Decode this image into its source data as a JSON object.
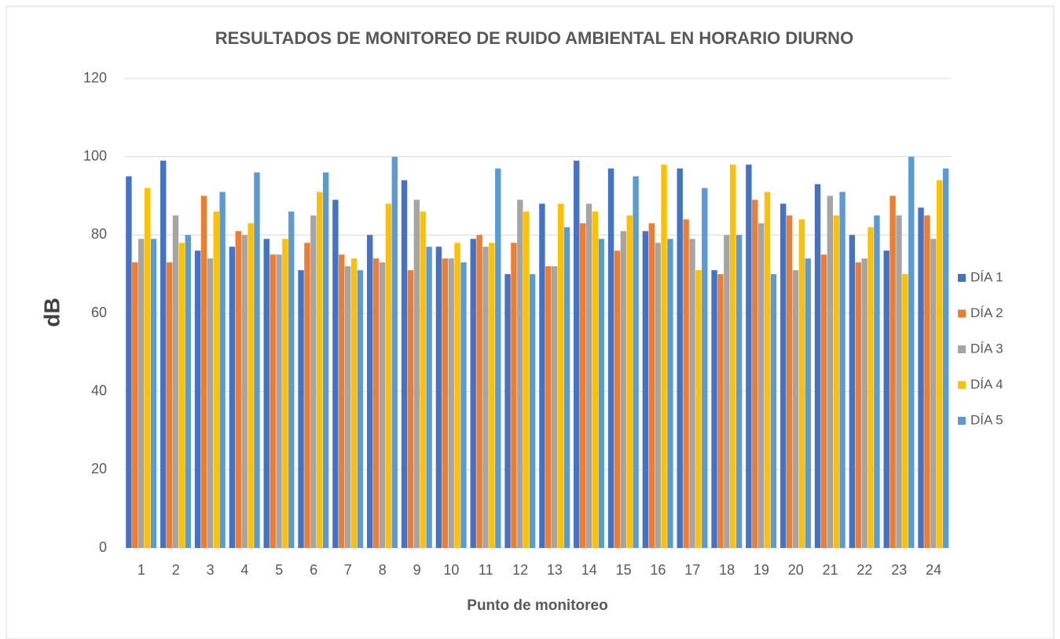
{
  "chart_data": {
    "type": "bar",
    "title": "RESULTADOS DE MONITOREO DE RUIDO AMBIENTAL EN HORARIO DIURNO",
    "y_label": "dB",
    "x_label": "Punto de monitoreo",
    "categories": [
      "1",
      "2",
      "3",
      "4",
      "5",
      "6",
      "7",
      "8",
      "9",
      "10",
      "11",
      "12",
      "13",
      "14",
      "15",
      "16",
      "17",
      "18",
      "19",
      "20",
      "21",
      "22",
      "23",
      "24"
    ],
    "series": [
      {
        "name": "DÍA 1",
        "color": "#4472c4",
        "values": [
          95,
          99,
          76,
          77,
          79,
          71,
          89,
          80,
          94,
          77,
          79,
          70,
          88,
          99,
          97,
          81,
          97,
          71,
          98,
          88,
          93,
          80,
          76,
          87
        ]
      },
      {
        "name": "DÍA 2",
        "color": "#ed7d31",
        "values": [
          73,
          73,
          90,
          81,
          75,
          78,
          75,
          74,
          71,
          74,
          80,
          78,
          72,
          83,
          76,
          83,
          84,
          70,
          89,
          85,
          75,
          73,
          90,
          85
        ]
      },
      {
        "name": "DÍA 3",
        "color": "#a5a5a5",
        "values": [
          79,
          85,
          74,
          80,
          75,
          85,
          72,
          73,
          89,
          74,
          77,
          89,
          72,
          88,
          81,
          78,
          79,
          80,
          83,
          71,
          90,
          74,
          85,
          79
        ]
      },
      {
        "name": "DÍA 4",
        "color": "#ffc000",
        "values": [
          92,
          78,
          86,
          83,
          79,
          91,
          74,
          88,
          86,
          78,
          78,
          86,
          88,
          86,
          85,
          98,
          71,
          98,
          91,
          84,
          85,
          82,
          70,
          94
        ]
      },
      {
        "name": "DÍA 5",
        "color": "#5b9bd5",
        "values": [
          79,
          80,
          91,
          96,
          86,
          96,
          71,
          100,
          77,
          73,
          97,
          70,
          82,
          79,
          95,
          79,
          92,
          80,
          70,
          74,
          91,
          85,
          100,
          97
        ]
      }
    ],
    "ylim": [
      0,
      120
    ],
    "yticks": [
      0,
      20,
      40,
      60,
      80,
      100,
      120
    ],
    "grid": true,
    "legend": "right"
  }
}
